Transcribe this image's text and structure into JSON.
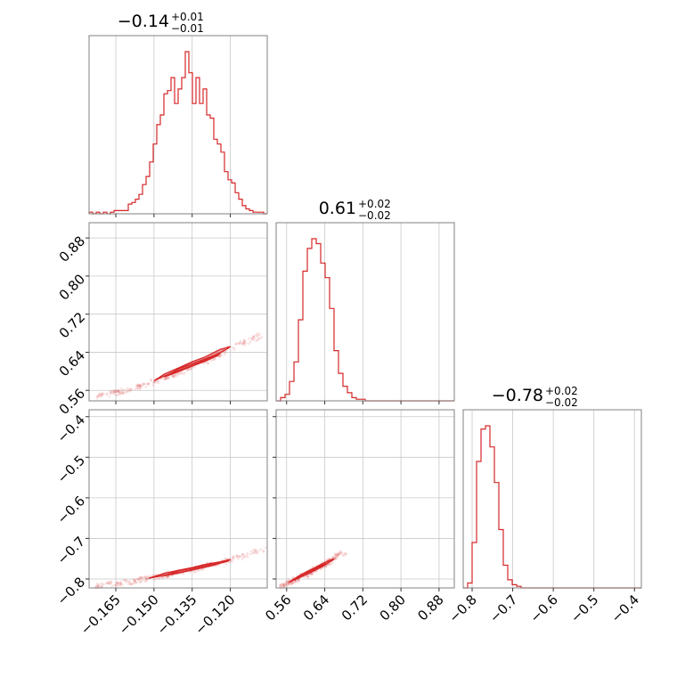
{
  "chart_data": {
    "type": "corner",
    "color": "#d62728",
    "parameters": [
      {
        "range": [
          -0.1755,
          -0.1055
        ],
        "ticks": [
          -0.165,
          -0.15,
          -0.135,
          -0.12
        ],
        "tick_labels": [
          "−0.165",
          "−0.150",
          "−0.135",
          "−0.120"
        ],
        "title": {
          "median": "−0.14",
          "plus": "+0.01",
          "minus": "−0.01"
        },
        "hist_peak": 1.0,
        "hist": [
          0.01,
          0.0,
          0.01,
          0.0,
          0.01,
          0.0,
          0.01,
          0.02,
          0.02,
          0.02,
          0.02,
          0.06,
          0.07,
          0.09,
          0.12,
          0.18,
          0.23,
          0.32,
          0.43,
          0.55,
          0.61,
          0.74,
          0.76,
          0.84,
          0.68,
          0.77,
          0.84,
          1.0,
          0.87,
          0.68,
          0.84,
          0.68,
          0.77,
          0.61,
          0.59,
          0.46,
          0.43,
          0.38,
          0.26,
          0.21,
          0.19,
          0.13,
          0.09,
          0.05,
          0.03,
          0.02,
          0.01,
          0.01,
          0.01,
          0.0
        ]
      },
      {
        "range": [
          0.538,
          0.912
        ],
        "ticks": [
          0.56,
          0.64,
          0.72,
          0.8,
          0.88
        ],
        "tick_labels": [
          "0.56",
          "0.64",
          "0.72",
          "0.80",
          "0.88"
        ],
        "title": {
          "median": "0.61",
          "plus": "+0.02",
          "minus": "−0.02"
        },
        "hist_peak": 1.0,
        "hist": [
          0.0,
          0.02,
          0.04,
          0.12,
          0.24,
          0.5,
          0.8,
          0.94,
          1.0,
          0.97,
          0.85,
          0.76,
          0.57,
          0.31,
          0.17,
          0.09,
          0.05,
          0.02,
          0.01,
          0.01,
          0.0,
          0.0,
          0.0,
          0.0,
          0.0,
          0.0,
          0.0,
          0.0,
          0.0,
          0.0,
          0.0,
          0.0,
          0.0,
          0.0,
          0.0,
          0.0,
          0.0,
          0.0,
          0.0,
          0.0
        ]
      },
      {
        "range": [
          -0.822,
          -0.383
        ],
        "ticks": [
          -0.8,
          -0.7,
          -0.6,
          -0.5,
          -0.4
        ],
        "tick_labels": [
          "−0.8",
          "−0.7",
          "−0.6",
          "−0.5",
          "−0.4"
        ],
        "title": {
          "median": "−0.78",
          "plus": "+0.02",
          "minus": "−0.02"
        },
        "hist_peak": 1.0,
        "hist": [
          0.0,
          0.03,
          0.28,
          0.78,
          0.98,
          1.0,
          0.87,
          0.65,
          0.36,
          0.14,
          0.05,
          0.02,
          0.01,
          0.0,
          0.0,
          0.0,
          0.0,
          0.0,
          0.0,
          0.0,
          0.0,
          0.0,
          0.0,
          0.0,
          0.0,
          0.0,
          0.0,
          0.0,
          0.0,
          0.0,
          0.0,
          0.0,
          0.0,
          0.0,
          0.0,
          0.0,
          0.0,
          0.0,
          0.0,
          0.0
        ]
      }
    ],
    "pairs": [
      {
        "x_param": 0,
        "y_param": 1,
        "trend": {
          "x": [
            -0.172,
            -0.16,
            -0.15,
            -0.14,
            -0.13,
            -0.12,
            -0.108
          ],
          "y": [
            0.548,
            0.56,
            0.578,
            0.598,
            0.62,
            0.647,
            0.675
          ]
        },
        "contours": [
          {
            "x": [
              -0.15,
              -0.146,
              -0.14,
              -0.135,
              -0.13,
              -0.125,
              -0.121,
              -0.12,
              -0.124,
              -0.13,
              -0.135,
              -0.14,
              -0.146,
              -0.15
            ],
            "y": [
              0.58,
              0.59,
              0.602,
              0.612,
              0.623,
              0.636,
              0.648,
              0.652,
              0.646,
              0.63,
              0.62,
              0.608,
              0.594,
              0.58
            ]
          },
          {
            "x": [
              -0.146,
              -0.14,
              -0.135,
              -0.13,
              -0.125,
              -0.124,
              -0.128,
              -0.134,
              -0.14,
              -0.146
            ],
            "y": [
              0.588,
              0.6,
              0.611,
              0.621,
              0.633,
              0.638,
              0.63,
              0.618,
              0.606,
              0.588
            ]
          }
        ]
      },
      {
        "x_param": 0,
        "y_param": 2,
        "trend": {
          "x": [
            -0.173,
            -0.16,
            -0.15,
            -0.14,
            -0.13,
            -0.12,
            -0.107
          ],
          "y": [
            -0.818,
            -0.808,
            -0.796,
            -0.784,
            -0.77,
            -0.753,
            -0.728
          ]
        },
        "contours": [
          {
            "x": [
              -0.152,
              -0.146,
              -0.14,
              -0.135,
              -0.13,
              -0.125,
              -0.121,
              -0.12,
              -0.124,
              -0.13,
              -0.135,
              -0.14,
              -0.146,
              -0.152
            ],
            "y": [
              -0.798,
              -0.791,
              -0.784,
              -0.777,
              -0.771,
              -0.763,
              -0.756,
              -0.752,
              -0.758,
              -0.764,
              -0.772,
              -0.778,
              -0.786,
              -0.798
            ]
          },
          {
            "x": [
              -0.146,
              -0.14,
              -0.135,
              -0.13,
              -0.126,
              -0.124,
              -0.128,
              -0.134,
              -0.14,
              -0.146
            ],
            "y": [
              -0.792,
              -0.785,
              -0.778,
              -0.771,
              -0.765,
              -0.761,
              -0.765,
              -0.772,
              -0.779,
              -0.792
            ]
          }
        ]
      },
      {
        "x_param": 1,
        "y_param": 2,
        "trend": {
          "x": [
            0.548,
            0.57,
            0.59,
            0.61,
            0.63,
            0.65,
            0.68
          ],
          "y": [
            -0.818,
            -0.806,
            -0.795,
            -0.783,
            -0.77,
            -0.757,
            -0.732
          ]
        },
        "contours": [
          {
            "x": [
              0.565,
              0.58,
              0.595,
              0.61,
              0.625,
              0.64,
              0.655,
              0.66,
              0.648,
              0.632,
              0.618,
              0.602,
              0.585,
              0.565
            ],
            "y": [
              -0.808,
              -0.8,
              -0.792,
              -0.783,
              -0.774,
              -0.765,
              -0.755,
              -0.75,
              -0.755,
              -0.764,
              -0.773,
              -0.782,
              -0.793,
              -0.808
            ]
          },
          {
            "x": [
              0.575,
              0.59,
              0.605,
              0.62,
              0.635,
              0.645,
              0.635,
              0.62,
              0.605,
              0.59,
              0.575
            ],
            "y": [
              -0.803,
              -0.795,
              -0.787,
              -0.778,
              -0.769,
              -0.762,
              -0.765,
              -0.773,
              -0.782,
              -0.791,
              -0.803
            ]
          }
        ]
      }
    ]
  }
}
